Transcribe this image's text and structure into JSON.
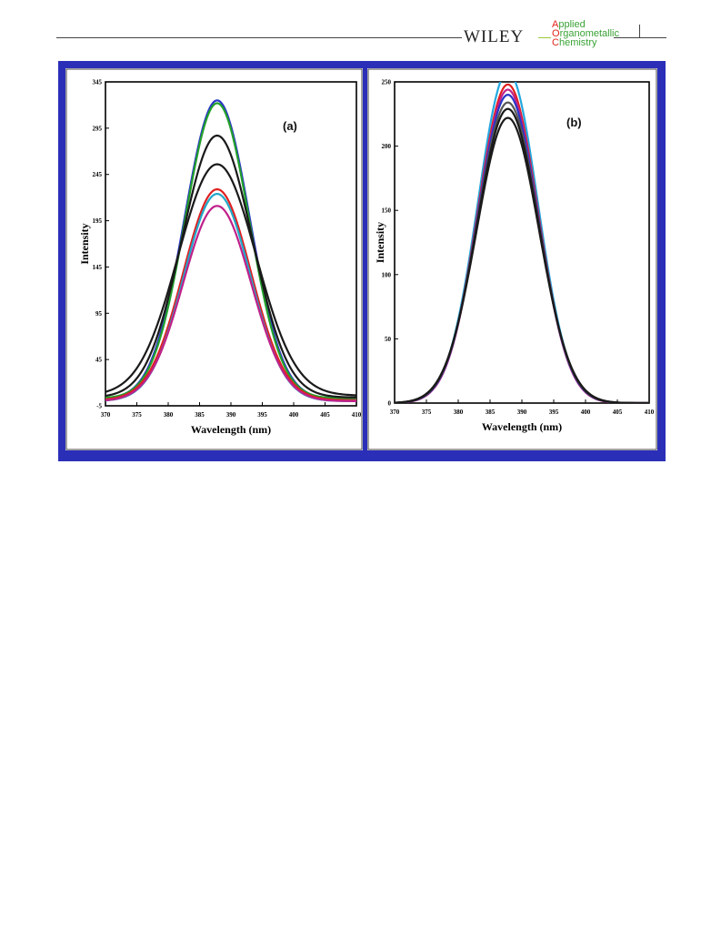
{
  "header": {
    "publisher": "WILEY",
    "journal_lines": [
      {
        "initial": "A",
        "rest": "pplied"
      },
      {
        "initial": "O",
        "rest": "rganometallic"
      },
      {
        "initial": "C",
        "rest": "hemistry"
      }
    ]
  },
  "colors": {
    "frame": "#2b2fb8",
    "journal_green": "#3aa335",
    "journal_red": "#e2231a"
  },
  "chart_data": [
    {
      "type": "line",
      "panel_label": "(a)",
      "xlabel": "Wavelength (nm)",
      "ylabel": "Intensity",
      "xlim": [
        370,
        410
      ],
      "ylim": [
        -5,
        345
      ],
      "xticks": [
        370,
        375,
        380,
        385,
        390,
        395,
        400,
        405,
        410
      ],
      "yticks": [
        -5,
        45,
        95,
        145,
        195,
        245,
        295,
        345
      ],
      "ytick_labels": [
        "-5",
        "45",
        "95",
        "145",
        "195",
        "245",
        "295",
        "345"
      ],
      "xtick_labels": [
        "370",
        "375",
        "380",
        "385",
        "390",
        "395",
        "400",
        "405",
        "410"
      ],
      "peak_x": 387.8,
      "series": [
        {
          "color": "#2a35c8",
          "peak": 325,
          "baseline": 2,
          "width": 5.2
        },
        {
          "color": "#22a02a",
          "peak": 322,
          "baseline": 3,
          "width": 5.1
        },
        {
          "color": "#1a1a1a",
          "peak": 287,
          "baseline": 4,
          "width": 5.6
        },
        {
          "color": "#1a1a1a",
          "peak": 256,
          "baseline": 6,
          "width": 6.2
        },
        {
          "color": "#e02020",
          "peak": 229,
          "baseline": 1,
          "width": 5.4
        },
        {
          "color": "#22a8c8",
          "peak": 224,
          "baseline": 0,
          "width": 5.3
        },
        {
          "color": "#c0208a",
          "peak": 211,
          "baseline": 0,
          "width": 5.4
        }
      ]
    },
    {
      "type": "line",
      "panel_label": "(b)",
      "xlabel": "Wavelength (nm)",
      "ylabel": "Intensity",
      "xlim": [
        370,
        410
      ],
      "ylim": [
        0,
        250
      ],
      "xticks": [
        370,
        375,
        380,
        385,
        390,
        395,
        400,
        405,
        410
      ],
      "yticks": [
        0,
        50,
        100,
        150,
        200,
        250
      ],
      "ytick_labels": [
        "0",
        "50",
        "100",
        "150",
        "200",
        "250"
      ],
      "xtick_labels": [
        "370",
        "375",
        "380",
        "385",
        "390",
        "395",
        "400",
        "405",
        "410"
      ],
      "peak_x": 387.8,
      "series": [
        {
          "color": "#22a8e0",
          "peak": 258,
          "baseline": 0,
          "width": 4.7
        },
        {
          "color": "#e02020",
          "peak": 248,
          "baseline": 0,
          "width": 4.7
        },
        {
          "color": "#c0208a",
          "peak": 244,
          "baseline": 0,
          "width": 4.7
        },
        {
          "color": "#2a35c8",
          "peak": 240,
          "baseline": 0,
          "width": 4.75
        },
        {
          "color": "#555555",
          "peak": 234,
          "baseline": 0,
          "width": 4.8
        },
        {
          "color": "#1a1a1a",
          "peak": 229,
          "baseline": 0,
          "width": 4.85
        },
        {
          "color": "#1a1a1a",
          "peak": 222,
          "baseline": 0,
          "width": 4.9
        }
      ]
    }
  ]
}
